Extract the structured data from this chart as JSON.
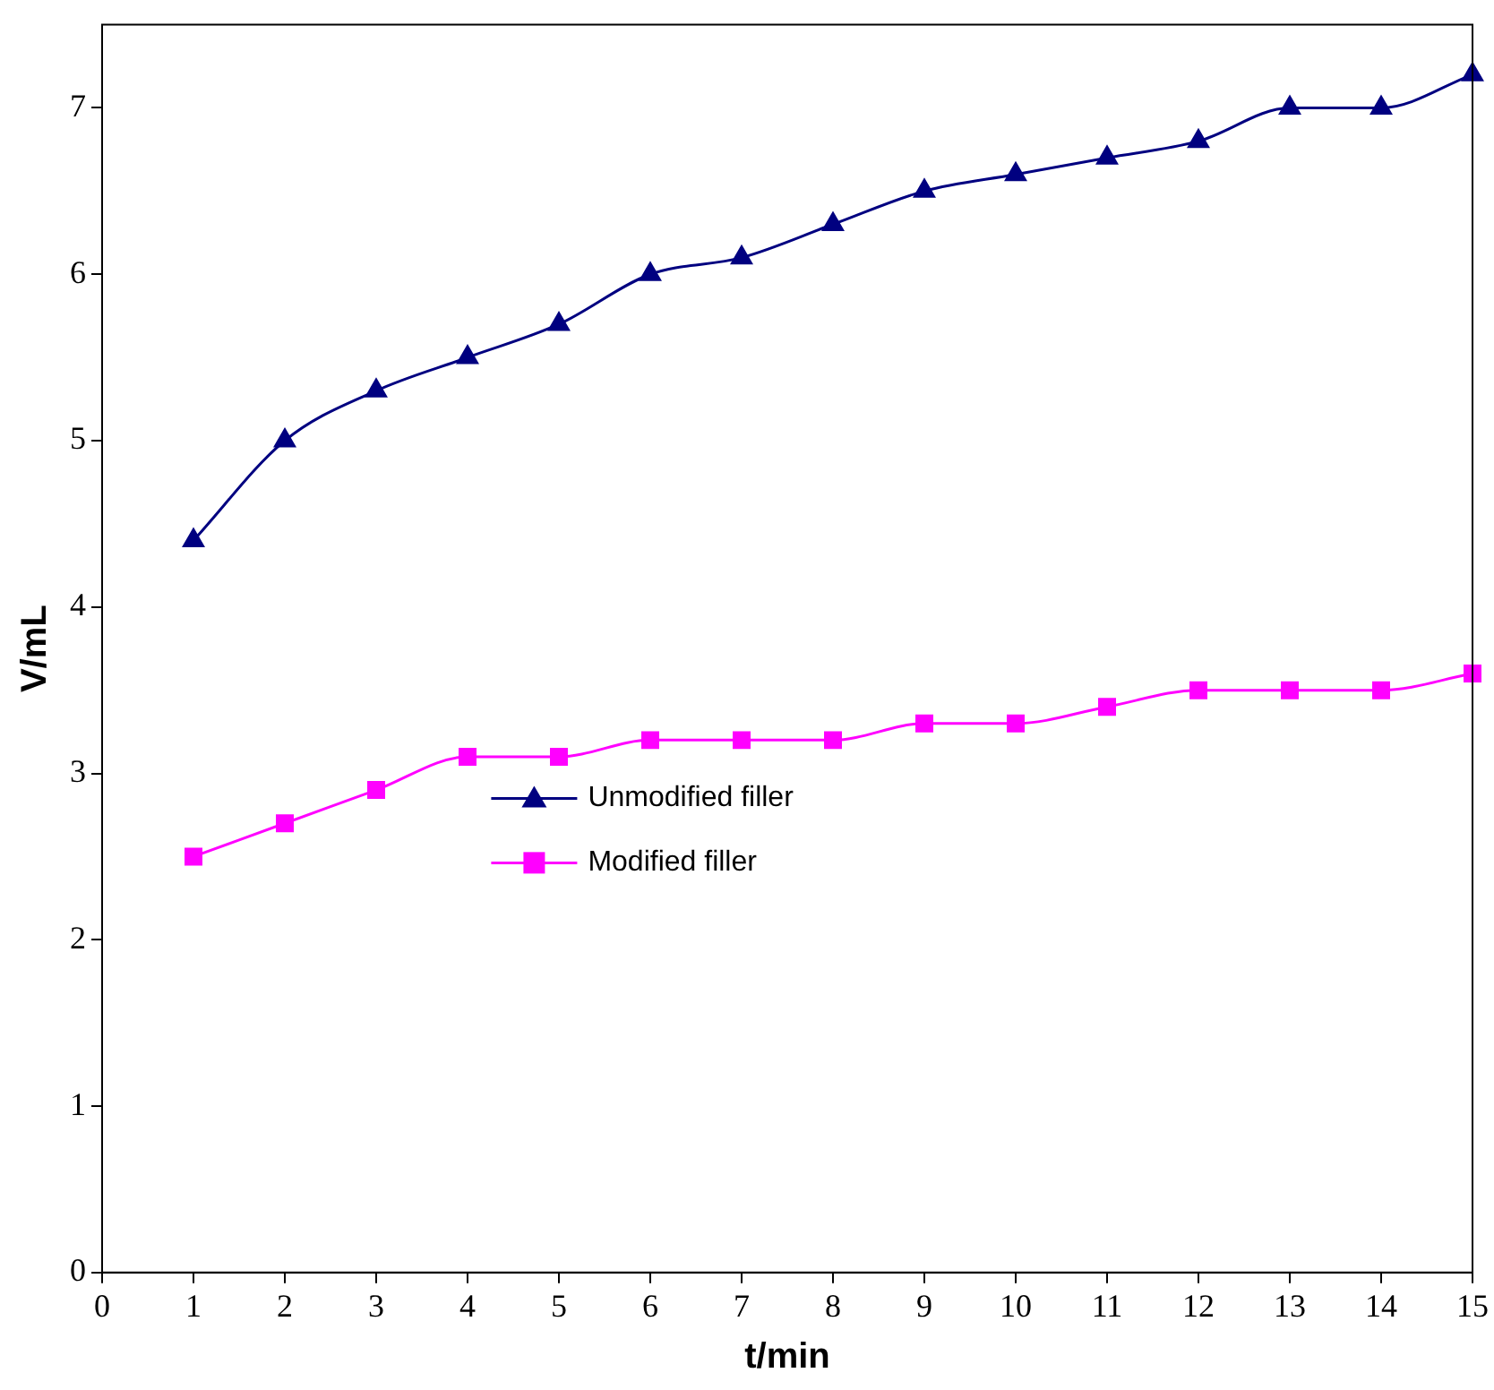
{
  "chart_data": {
    "type": "line",
    "xlabel": "t/min",
    "ylabel": "V/mL",
    "x": [
      1,
      2,
      3,
      4,
      5,
      6,
      7,
      8,
      9,
      10,
      11,
      12,
      13,
      14,
      15
    ],
    "series": [
      {
        "name": "Unmodified filler",
        "color": "#000080",
        "marker": "triangle",
        "values": [
          4.4,
          5.0,
          5.3,
          5.5,
          5.7,
          6.0,
          6.1,
          6.3,
          6.5,
          6.6,
          6.7,
          6.8,
          7.0,
          7.0,
          7.2
        ]
      },
      {
        "name": "Modified filler",
        "color": "#ff00ff",
        "marker": "square",
        "values": [
          2.5,
          2.7,
          2.9,
          3.1,
          3.1,
          3.2,
          3.2,
          3.2,
          3.3,
          3.3,
          3.4,
          3.5,
          3.5,
          3.5,
          3.6
        ]
      }
    ],
    "xlim": [
      0,
      15
    ],
    "xticks": [
      0,
      1,
      2,
      3,
      4,
      5,
      6,
      7,
      8,
      9,
      10,
      11,
      12,
      13,
      14,
      15
    ],
    "ylim": [
      0,
      7.5
    ],
    "yticks": [
      0,
      1,
      2,
      3,
      4,
      5,
      6,
      7
    ],
    "grid": false,
    "legend": "center"
  }
}
